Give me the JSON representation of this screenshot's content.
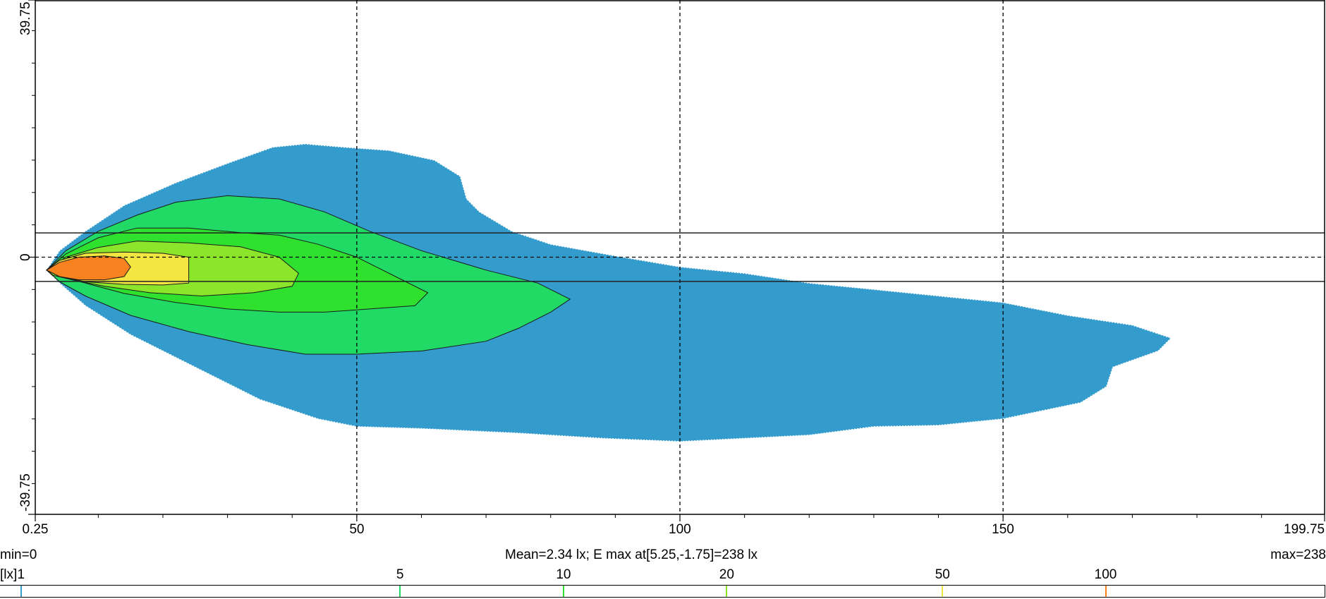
{
  "chart_data": {
    "type": "heatmap",
    "description_kind": "isolux contour plot",
    "xlim": [
      0.25,
      199.75
    ],
    "ylim": [
      -39.75,
      39.75
    ],
    "x_ticks": [
      "0.25",
      "50",
      "100",
      "150",
      "199.75"
    ],
    "y_ticks": [
      "39.75",
      "0",
      "-39.75"
    ],
    "x_tick_values": [
      0.25,
      50,
      100,
      150,
      199.75
    ],
    "y_tick_values": [
      39.75,
      0,
      -39.75
    ],
    "grid_dashed_x": [
      50,
      100,
      150
    ],
    "grid_dashed_y": [
      0
    ],
    "reference_lines_y": [
      3.75,
      -3.75
    ],
    "unit": "[lx]",
    "levels": [
      1,
      5,
      10,
      20,
      50,
      100
    ],
    "level_colors": [
      "#339CCD",
      "#21D965",
      "#2FE02F",
      "#8AE52B",
      "#F3E640",
      "#F5821F"
    ],
    "contours": [
      {
        "level": 1,
        "color": "#339CCD",
        "points": [
          [
            2,
            -2
          ],
          [
            4,
            1
          ],
          [
            8,
            4
          ],
          [
            14,
            8
          ],
          [
            22,
            11.5
          ],
          [
            30,
            14.5
          ],
          [
            37,
            17
          ],
          [
            42,
            17.5
          ],
          [
            48,
            17
          ],
          [
            55,
            16.5
          ],
          [
            62,
            15
          ],
          [
            66,
            12.5
          ],
          [
            67,
            9
          ],
          [
            69,
            7
          ],
          [
            74,
            4
          ],
          [
            80,
            2
          ],
          [
            90,
            0.2
          ],
          [
            100,
            -1.5
          ],
          [
            110,
            -2.5
          ],
          [
            120,
            -4
          ],
          [
            130,
            -5
          ],
          [
            140,
            -6
          ],
          [
            150,
            -7
          ],
          [
            160,
            -9
          ],
          [
            170,
            -10.5
          ],
          [
            176,
            -12.5
          ],
          [
            174,
            -14.5
          ],
          [
            167,
            -17
          ],
          [
            166,
            -20
          ],
          [
            162,
            -22.5
          ],
          [
            150,
            -25
          ],
          [
            140,
            -26
          ],
          [
            130,
            -26.2
          ],
          [
            120,
            -27.5
          ],
          [
            110,
            -28
          ],
          [
            100,
            -28.5
          ],
          [
            88,
            -28
          ],
          [
            75,
            -27.2
          ],
          [
            60,
            -26.5
          ],
          [
            50,
            -26.2
          ],
          [
            44,
            -25
          ],
          [
            35,
            -22
          ],
          [
            25,
            -17
          ],
          [
            15,
            -12
          ],
          [
            8,
            -7.5
          ],
          [
            4,
            -4
          ]
        ]
      },
      {
        "level": 5,
        "color": "#21D965",
        "points": [
          [
            2,
            -2
          ],
          [
            5,
            1
          ],
          [
            10,
            4
          ],
          [
            16,
            6.5
          ],
          [
            22,
            8.5
          ],
          [
            30,
            9.5
          ],
          [
            38,
            9
          ],
          [
            45,
            7
          ],
          [
            52,
            4
          ],
          [
            60,
            1
          ],
          [
            70,
            -2
          ],
          [
            78,
            -4
          ],
          [
            83,
            -6.5
          ],
          [
            80,
            -8.5
          ],
          [
            75,
            -11
          ],
          [
            70,
            -13
          ],
          [
            60,
            -14.5
          ],
          [
            50,
            -15
          ],
          [
            42,
            -15
          ],
          [
            33,
            -13.5
          ],
          [
            24,
            -11.5
          ],
          [
            15,
            -9
          ],
          [
            8,
            -6
          ],
          [
            4,
            -3.8
          ]
        ]
      },
      {
        "level": 10,
        "color": "#2FE02F",
        "points": [
          [
            2,
            -2
          ],
          [
            5,
            0.5
          ],
          [
            10,
            3
          ],
          [
            16,
            4.5
          ],
          [
            24,
            4.5
          ],
          [
            32,
            3.8
          ],
          [
            38,
            3.4
          ],
          [
            44,
            2
          ],
          [
            50,
            0
          ],
          [
            56,
            -3
          ],
          [
            61,
            -5.5
          ],
          [
            59,
            -7.5
          ],
          [
            52,
            -8
          ],
          [
            45,
            -8.5
          ],
          [
            38,
            -8.5
          ],
          [
            30,
            -8
          ],
          [
            22,
            -7
          ],
          [
            14,
            -5.6
          ],
          [
            8,
            -4
          ],
          [
            4,
            -3
          ]
        ]
      },
      {
        "level": 20,
        "color": "#8AE52B",
        "points": [
          [
            2,
            -2
          ],
          [
            5,
            0
          ],
          [
            10,
            1.5
          ],
          [
            16,
            2.5
          ],
          [
            24,
            2.2
          ],
          [
            32,
            1.6
          ],
          [
            38,
            0
          ],
          [
            41,
            -2.5
          ],
          [
            40,
            -4.5
          ],
          [
            34,
            -5.5
          ],
          [
            26,
            -6
          ],
          [
            18,
            -5.5
          ],
          [
            11,
            -4.5
          ],
          [
            6,
            -3.5
          ],
          [
            3,
            -2.8
          ]
        ]
      },
      {
        "level": 50,
        "color": "#F3E640",
        "points": [
          [
            2,
            -2
          ],
          [
            4,
            -0.5
          ],
          [
            8,
            0.6
          ],
          [
            14,
            0.8
          ],
          [
            20,
            0.6
          ],
          [
            24,
            0
          ],
          [
            24,
            -4
          ],
          [
            20,
            -4.3
          ],
          [
            14,
            -4.2
          ],
          [
            8,
            -3.8
          ],
          [
            4,
            -3
          ]
        ]
      },
      {
        "level": 100,
        "color": "#F5821F",
        "points": [
          [
            2,
            -2
          ],
          [
            4,
            -0.8
          ],
          [
            7,
            0
          ],
          [
            11,
            0.2
          ],
          [
            14,
            -0.2
          ],
          [
            15,
            -1.5
          ],
          [
            14,
            -3
          ],
          [
            11,
            -3.5
          ],
          [
            7,
            -3.5
          ],
          [
            4,
            -3
          ]
        ]
      }
    ]
  },
  "footer": {
    "min_text": "min=0",
    "stats_text": "Mean=2.34 lx; E max at[5.25,-1.75]=238 lx",
    "max_text": "max=238"
  },
  "legend": {
    "unit_label": "[lx]",
    "marks": [
      {
        "label": "1",
        "color": "#339CCD"
      },
      {
        "label": "5",
        "color": "#21D965"
      },
      {
        "label": "10",
        "color": "#2FE02F"
      },
      {
        "label": "20",
        "color": "#8AE52B"
      },
      {
        "label": "50",
        "color": "#F3E640"
      },
      {
        "label": "100",
        "color": "#F5821F"
      }
    ]
  }
}
